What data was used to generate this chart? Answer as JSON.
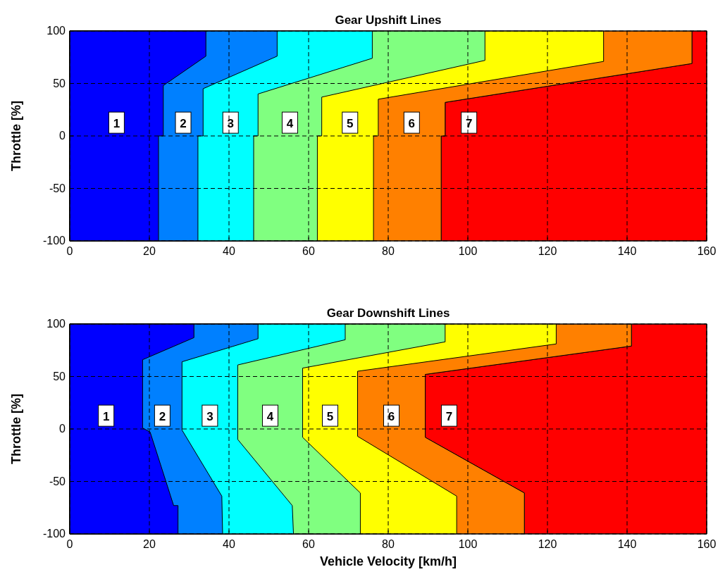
{
  "chart_data": [
    {
      "type": "area",
      "title": "Gear Upshift Lines",
      "ylabel": "Throttle [%]",
      "xlim": [
        0,
        160
      ],
      "xticks": [
        0,
        20,
        40,
        60,
        80,
        100,
        120,
        140,
        160
      ],
      "ylim": [
        -100,
        100
      ],
      "yticks": [
        -100,
        -50,
        0,
        50,
        100
      ],
      "grid": true,
      "line_style": "dashed",
      "legend": false,
      "tick_labels": "xy",
      "series": [
        {
          "name": "1",
          "color": "#0000ff",
          "x": [
            0,
            34.2,
            34.2,
            23.5,
            23.5,
            22.3,
            22.3,
            0
          ],
          "values": [
            100,
            100,
            76,
            48,
            0,
            0,
            -100,
            -100
          ]
        },
        {
          "name": "2",
          "color": "#0080ff",
          "x": [
            0,
            52.1,
            52.1,
            33.5,
            33.5,
            32.2,
            32.2,
            0
          ],
          "values": [
            100,
            100,
            76,
            45,
            0,
            0,
            -100,
            -100
          ]
        },
        {
          "name": "3",
          "color": "#00ffff",
          "x": [
            0,
            76,
            76,
            47.3,
            47.3,
            46.2,
            46.2,
            0
          ],
          "values": [
            100,
            100,
            74,
            40,
            0,
            0,
            -100,
            -100
          ]
        },
        {
          "name": "4",
          "color": "#80ff80",
          "x": [
            0,
            104.3,
            104.3,
            63.3,
            63.3,
            62.2,
            62.2,
            0
          ],
          "values": [
            100,
            100,
            72,
            37,
            0,
            0,
            -100,
            -100
          ]
        },
        {
          "name": "5",
          "color": "#ffff00",
          "x": [
            0,
            134.1,
            134.1,
            77.5,
            77.5,
            76.3,
            76.3,
            0
          ],
          "values": [
            100,
            100,
            71,
            35,
            0,
            0,
            -100,
            -100
          ]
        },
        {
          "name": "6",
          "color": "#ff8000",
          "x": [
            0,
            156.3,
            156.3,
            94.3,
            94.3,
            93.3,
            93.3,
            0
          ],
          "values": [
            100,
            100,
            69,
            32,
            0,
            0,
            -100,
            -100
          ]
        },
        {
          "name": "7",
          "color": "#ff0000",
          "x": [
            156.3,
            160,
            160,
            93.3,
            93.3,
            94.3,
            94.3,
            156.3
          ],
          "values": [
            100,
            100,
            -100,
            -100,
            0,
            0,
            32,
            69
          ]
        }
      ]
    },
    {
      "type": "area",
      "title": "Gear Downshift Lines",
      "xlabel": "Vehicle Velocity [km/h]",
      "ylabel": "Throttle [%]",
      "xlim": [
        0,
        160
      ],
      "xticks": [
        0,
        20,
        40,
        60,
        80,
        100,
        120,
        140,
        160
      ],
      "ylim": [
        -100,
        100
      ],
      "yticks": [
        -100,
        -50,
        0,
        50,
        100
      ],
      "grid": true,
      "line_style": "dashed",
      "legend": false,
      "series": [
        {
          "name": "1",
          "color": "#0000ff",
          "x": [
            0,
            31.2,
            31.2,
            18.3,
            18.3,
            20.2,
            26.1,
            27.2,
            27.2,
            0
          ],
          "values": [
            100,
            100,
            87,
            66,
            1,
            -3,
            -73,
            -73,
            -100,
            -100
          ]
        },
        {
          "name": "2",
          "color": "#0080ff",
          "x": [
            0,
            47.3,
            47.3,
            28.2,
            28.2,
            38.2,
            38.4,
            0
          ],
          "values": [
            100,
            100,
            86,
            64,
            -1,
            -64,
            -100,
            -100
          ]
        },
        {
          "name": "3",
          "color": "#00ffff",
          "x": [
            0,
            69.2,
            69.2,
            42.2,
            42.2,
            55.9,
            56.2,
            0
          ],
          "values": [
            100,
            100,
            85,
            61,
            -10,
            -73,
            -100,
            -100
          ]
        },
        {
          "name": "4",
          "color": "#80ff80",
          "x": [
            0,
            94.3,
            94.3,
            58.5,
            58.5,
            73,
            73,
            0
          ],
          "values": [
            100,
            100,
            83,
            58,
            -8,
            -61,
            -100,
            -100
          ]
        },
        {
          "name": "5",
          "color": "#ffff00",
          "x": [
            0,
            122.2,
            122.2,
            72.3,
            72.3,
            97.2,
            97.2,
            0
          ],
          "values": [
            100,
            100,
            81,
            55,
            -7,
            -64,
            -100,
            -100
          ]
        },
        {
          "name": "6",
          "color": "#ff8000",
          "x": [
            0,
            141.1,
            141.1,
            89.3,
            89.3,
            114.2,
            114.2,
            0
          ],
          "values": [
            100,
            100,
            79,
            52,
            -8,
            -61,
            -100,
            -100
          ]
        },
        {
          "name": "7",
          "color": "#ff0000",
          "x": [
            141.1,
            160,
            160,
            114.2,
            114.2,
            89.3,
            89.3,
            141.1
          ],
          "values": [
            100,
            100,
            -100,
            -100,
            -61,
            -8,
            52,
            79
          ]
        }
      ]
    }
  ]
}
